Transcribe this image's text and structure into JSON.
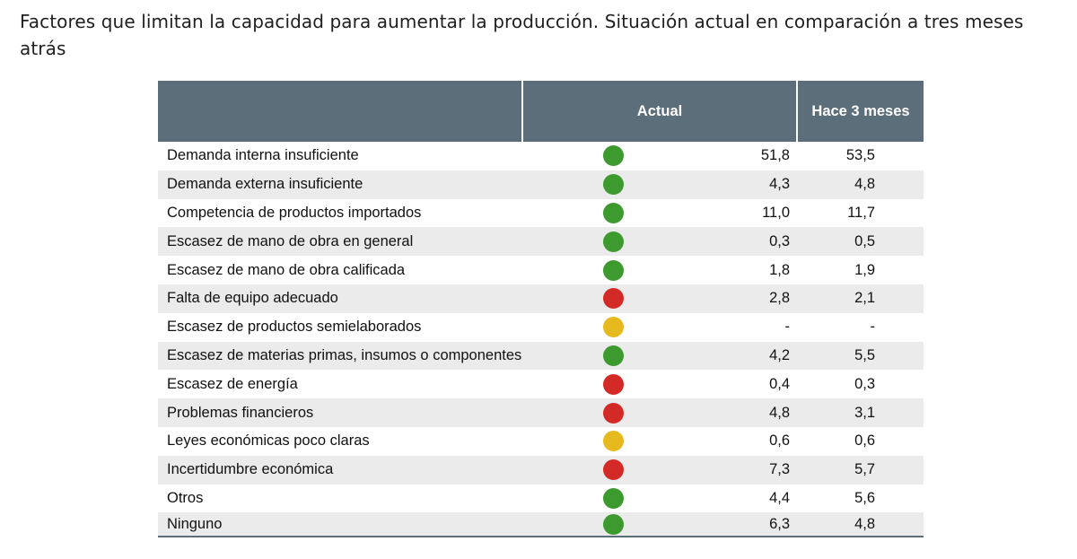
{
  "title": "Factores que limitan la capacidad para aumentar la producción. Situación actual en comparación a tres meses atrás",
  "table": {
    "headers": {
      "factor": "",
      "actual": "Actual",
      "previous": "Hace 3 meses"
    },
    "status_colors": {
      "green": "#3c9a2e",
      "red": "#d42a27",
      "yellow": "#e6b91e"
    },
    "rows": [
      {
        "label": "Demanda interna insuficiente",
        "status": "green",
        "actual": "51,8",
        "previous": "53,5"
      },
      {
        "label": "Demanda externa insuficiente",
        "status": "green",
        "actual": "4,3",
        "previous": "4,8"
      },
      {
        "label": "Competencia de productos importados",
        "status": "green",
        "actual": "11,0",
        "previous": "11,7"
      },
      {
        "label": "Escasez de mano de obra en general",
        "status": "green",
        "actual": "0,3",
        "previous": "0,5"
      },
      {
        "label": "Escasez de mano de obra calificada",
        "status": "green",
        "actual": "1,8",
        "previous": "1,9"
      },
      {
        "label": "Falta de equipo adecuado",
        "status": "red",
        "actual": "2,8",
        "previous": "2,1"
      },
      {
        "label": "Escasez de productos semielaborados",
        "status": "yellow",
        "actual": "-",
        "previous": "-"
      },
      {
        "label": "Escasez de materias primas, insumos o componentes",
        "status": "green",
        "actual": "4,2",
        "previous": "5,5"
      },
      {
        "label": "Escasez de energía",
        "status": "red",
        "actual": "0,4",
        "previous": "0,3"
      },
      {
        "label": "Problemas financieros",
        "status": "red",
        "actual": "4,8",
        "previous": "3,1"
      },
      {
        "label": "Leyes económicas poco claras",
        "status": "yellow",
        "actual": "0,6",
        "previous": "0,6"
      },
      {
        "label": "Incertidumbre económica",
        "status": "red",
        "actual": "7,3",
        "previous": "5,7"
      },
      {
        "label": "Otros",
        "status": "green",
        "actual": "4,4",
        "previous": "5,6"
      },
      {
        "label": "Ninguno",
        "status": "green",
        "actual": "6,3",
        "previous": "4,8"
      }
    ]
  }
}
